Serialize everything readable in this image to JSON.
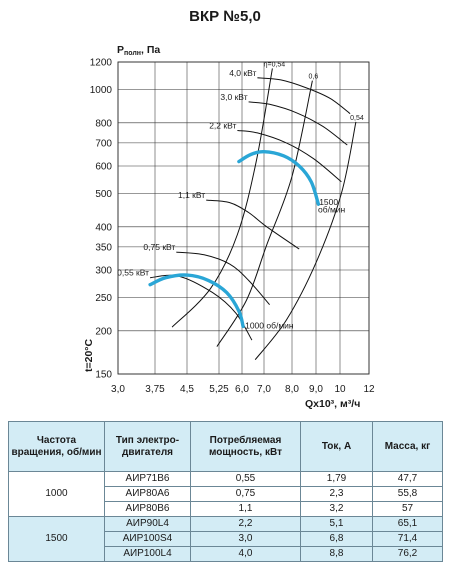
{
  "chart_data": {
    "type": "line",
    "title": "ВКР №5,0",
    "ylabel_main": "P",
    "ylabel_sub": "полн",
    "ylabel_unit": ", Па",
    "xlabel": "Qx10³, м³/ч",
    "temp_label": "t=20°C",
    "yscale": "log",
    "xlim": [
      3.0,
      12
    ],
    "ylim": [
      150,
      1200
    ],
    "grid": true,
    "x_ticks": [
      {
        "v": 3.0,
        "label": "3,0"
      },
      {
        "v": 3.75,
        "label": "3,75"
      },
      {
        "v": 4.5,
        "label": "4,5"
      },
      {
        "v": 5.25,
        "label": "5,25"
      },
      {
        "v": 6.0,
        "label": "6,0"
      },
      {
        "v": 7.0,
        "label": "7,0"
      },
      {
        "v": 8.0,
        "label": "8,0"
      },
      {
        "v": 9.0,
        "label": "9,0"
      },
      {
        "v": 10,
        "label": "10"
      },
      {
        "v": 12,
        "label": "12"
      }
    ],
    "y_ticks": [
      {
        "v": 150,
        "label": "150"
      },
      {
        "v": 200,
        "label": "200"
      },
      {
        "v": 250,
        "label": "250"
      },
      {
        "v": 300,
        "label": "300"
      },
      {
        "v": 350,
        "label": "350"
      },
      {
        "v": 400,
        "label": "400"
      },
      {
        "v": 500,
        "label": "500"
      },
      {
        "v": 600,
        "label": "600"
      },
      {
        "v": 700,
        "label": "700"
      },
      {
        "v": 800,
        "label": "800"
      },
      {
        "v": 1000,
        "label": "1000"
      },
      {
        "v": 1200,
        "label": "1200"
      }
    ],
    "series": [
      {
        "name": "1000 об/мин",
        "color": "#2aa6d6",
        "points": [
          [
            3.65,
            272
          ],
          [
            4.0,
            285
          ],
          [
            4.5,
            290
          ],
          [
            5.0,
            280
          ],
          [
            5.5,
            258
          ],
          [
            5.9,
            228
          ],
          [
            6.05,
            206
          ]
        ]
      },
      {
        "name": "1500 об/мин",
        "color": "#2aa6d6",
        "points": [
          [
            5.9,
            618
          ],
          [
            6.4,
            648
          ],
          [
            7.0,
            660
          ],
          [
            7.7,
            642
          ],
          [
            8.3,
            600
          ],
          [
            8.8,
            540
          ],
          [
            9.1,
            465
          ]
        ]
      }
    ],
    "power_curves": [
      {
        "label": "0,55 кВт",
        "points": [
          [
            3.65,
            285
          ],
          [
            4.3,
            288
          ],
          [
            5.1,
            258
          ],
          [
            5.8,
            225
          ],
          [
            6.45,
            188
          ]
        ]
      },
      {
        "label": "0,75 кВт",
        "points": [
          [
            4.25,
            338
          ],
          [
            4.9,
            332
          ],
          [
            5.6,
            312
          ],
          [
            6.3,
            280
          ],
          [
            7.2,
            238
          ]
        ]
      },
      {
        "label": "1,1 кВт",
        "points": [
          [
            4.95,
            478
          ],
          [
            5.6,
            470
          ],
          [
            6.3,
            440
          ],
          [
            7.1,
            400
          ],
          [
            8.3,
            345
          ]
        ]
      },
      {
        "label": "2,2 кВт",
        "points": [
          [
            5.85,
            760
          ],
          [
            6.7,
            748
          ],
          [
            7.8,
            700
          ],
          [
            8.9,
            630
          ],
          [
            10.1,
            540
          ]
        ]
      },
      {
        "label": "3,0 кВт",
        "points": [
          [
            6.3,
            920
          ],
          [
            7.2,
            905
          ],
          [
            8.2,
            855
          ],
          [
            9.3,
            780
          ],
          [
            10.5,
            690
          ]
        ]
      },
      {
        "label": "4,0 кВт",
        "points": [
          [
            6.7,
            1080
          ],
          [
            7.6,
            1065
          ],
          [
            8.6,
            1010
          ],
          [
            9.6,
            940
          ],
          [
            10.7,
            850
          ]
        ]
      }
    ],
    "efficiency_lines": [
      {
        "label": "η=0,54",
        "points": [
          [
            7.3,
            1150
          ],
          [
            6.65,
            620
          ],
          [
            5.85,
            380
          ],
          [
            5.05,
            265
          ],
          [
            4.15,
            205
          ]
        ]
      },
      {
        "label": "0,6",
        "points": [
          [
            8.85,
            1060
          ],
          [
            8.0,
            560
          ],
          [
            7.1,
            355
          ],
          [
            6.2,
            245
          ],
          [
            5.2,
            180
          ]
        ]
      },
      {
        "label": "0,54",
        "points": [
          [
            11.1,
            805
          ],
          [
            10.1,
            500
          ],
          [
            9.0,
            315
          ],
          [
            7.8,
            215
          ],
          [
            6.6,
            165
          ]
        ]
      }
    ],
    "annotations": [
      {
        "text": "1500",
        "x": 9.05,
        "y": 462
      },
      {
        "text": "об/мин",
        "x": 9.0,
        "y": 440
      },
      {
        "text": "1000 об/мин",
        "x": 6.05,
        "y": 203
      }
    ]
  },
  "table": {
    "headers": [
      "Частота вращения, об/мин",
      "Тип электро-двигателя",
      "Потребляемая мощность, кВт",
      "Ток, А",
      "Масса, кг"
    ],
    "groups": [
      {
        "speed": "1000",
        "rows": [
          {
            "motor": "АИР71В6",
            "power": "0,55",
            "current": "1,79",
            "mass": "47,7"
          },
          {
            "motor": "АИР80А6",
            "power": "0,75",
            "current": "2,3",
            "mass": "55,8"
          },
          {
            "motor": "АИР80В6",
            "power": "1,1",
            "current": "3,2",
            "mass": "57"
          }
        ]
      },
      {
        "speed": "1500",
        "rows": [
          {
            "motor": "АИР90L4",
            "power": "2,2",
            "current": "5,1",
            "mass": "65,1"
          },
          {
            "motor": "АИР100S4",
            "power": "3,0",
            "current": "6,8",
            "mass": "71,4"
          },
          {
            "motor": "АИР100L4",
            "power": "4,0",
            "current": "8,8",
            "mass": "76,2"
          }
        ]
      }
    ]
  }
}
